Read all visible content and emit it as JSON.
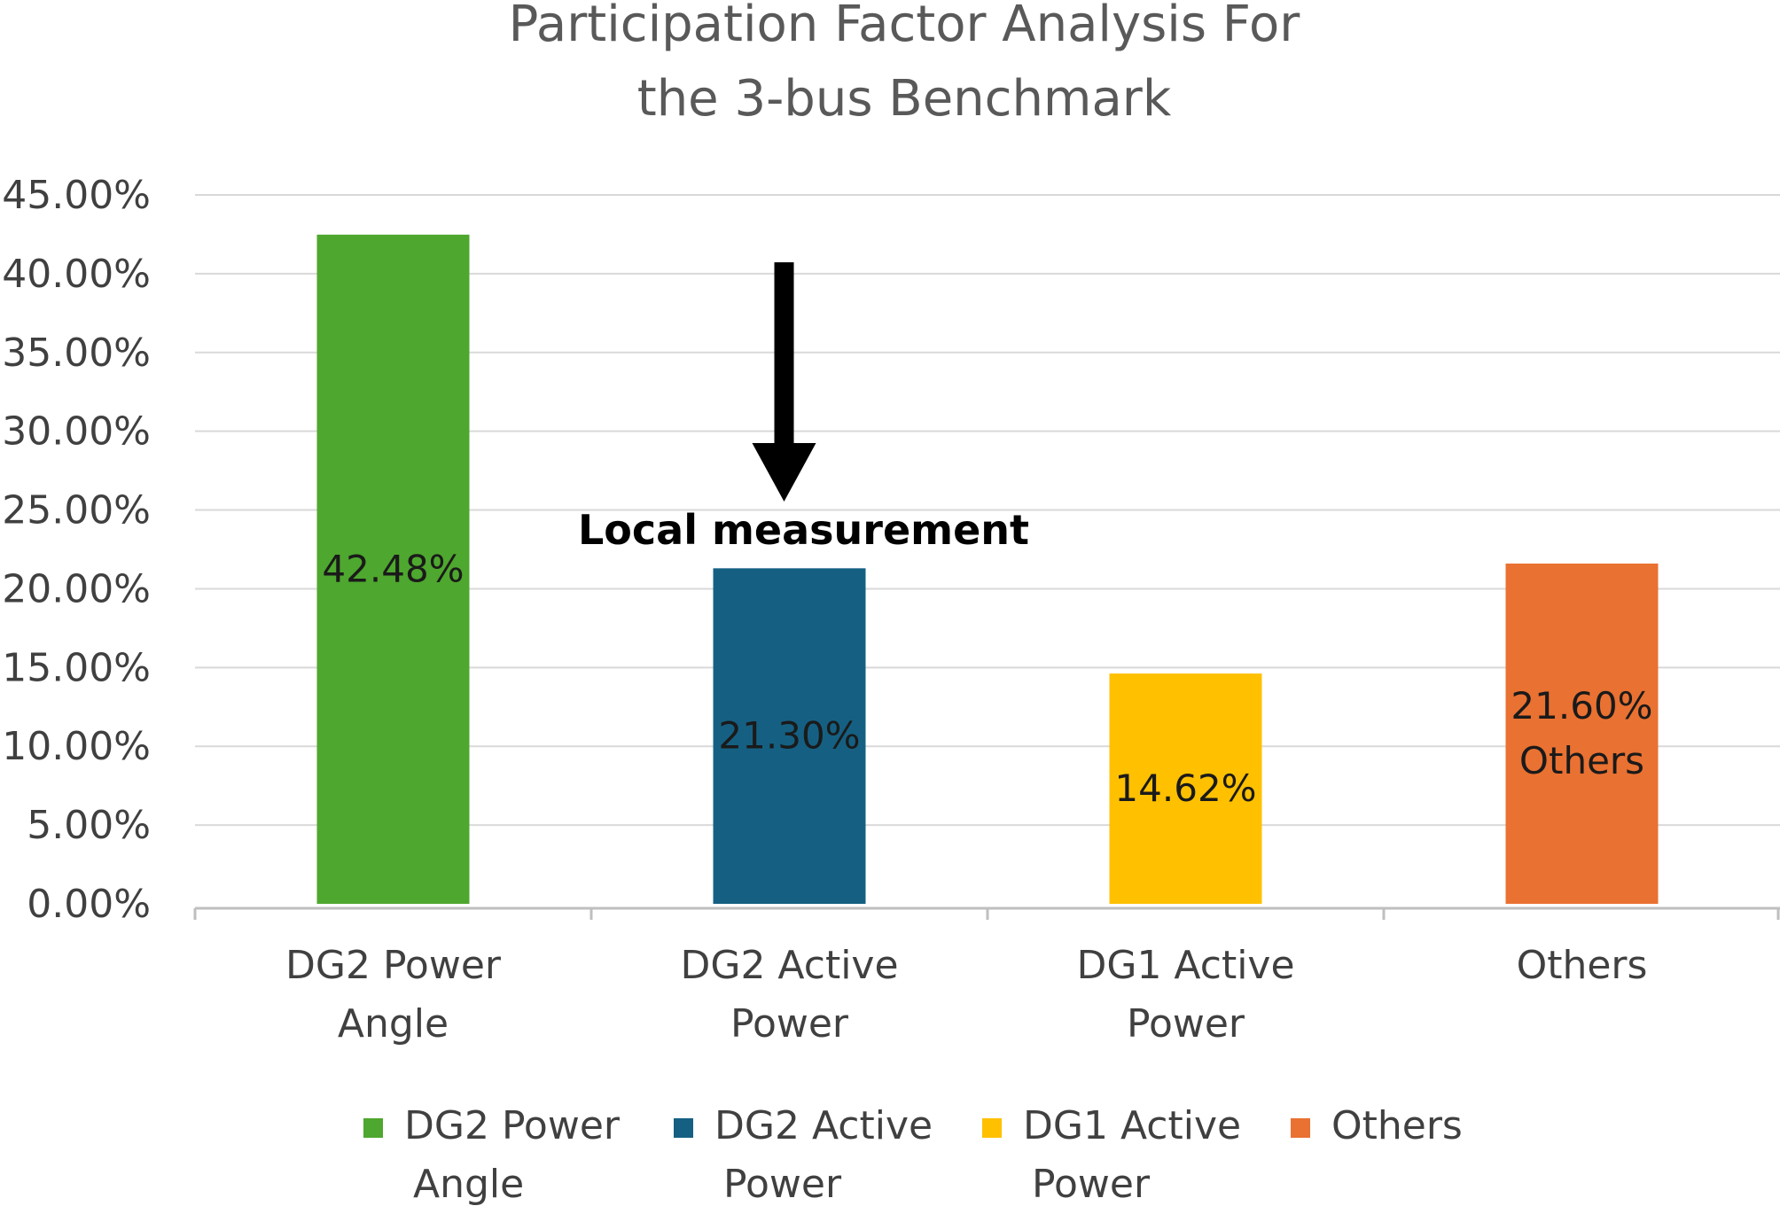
{
  "chart_data": {
    "type": "bar",
    "title": [
      "Participation Factor Analysis For",
      "the 3-bus Benchmark"
    ],
    "categories": [
      [
        "DG2 Power",
        "Angle"
      ],
      [
        "DG2 Active",
        "Power"
      ],
      [
        "DG1 Active",
        "Power"
      ],
      [
        "Others"
      ]
    ],
    "values": [
      42.48,
      21.3,
      14.62,
      21.6
    ],
    "data_labels": [
      [
        "42.48%"
      ],
      [
        "21.30%"
      ],
      [
        "14.62%"
      ],
      [
        "21.60%",
        "Others"
      ]
    ],
    "colors": [
      "#4EA72E",
      "#156082",
      "#FFC000",
      "#E97132"
    ],
    "ylim": [
      0,
      45
    ],
    "yticks": [
      "0.00%",
      "5.00%",
      "10.00%",
      "15.00%",
      "20.00%",
      "25.00%",
      "30.00%",
      "35.00%",
      "40.00%",
      "45.00%"
    ],
    "ytick_values": [
      0,
      5,
      10,
      15,
      20,
      25,
      30,
      35,
      40,
      45
    ],
    "grid": true,
    "legend": {
      "position": "bottom",
      "entries": [
        [
          "DG2 Power",
          "Angle"
        ],
        [
          "DG2 Active",
          "Power"
        ],
        [
          "DG1 Active",
          "Power"
        ],
        [
          "Others"
        ]
      ]
    },
    "annotation": {
      "text": "Local measurement",
      "target_category": 1
    },
    "xlabel": "",
    "ylabel": ""
  }
}
